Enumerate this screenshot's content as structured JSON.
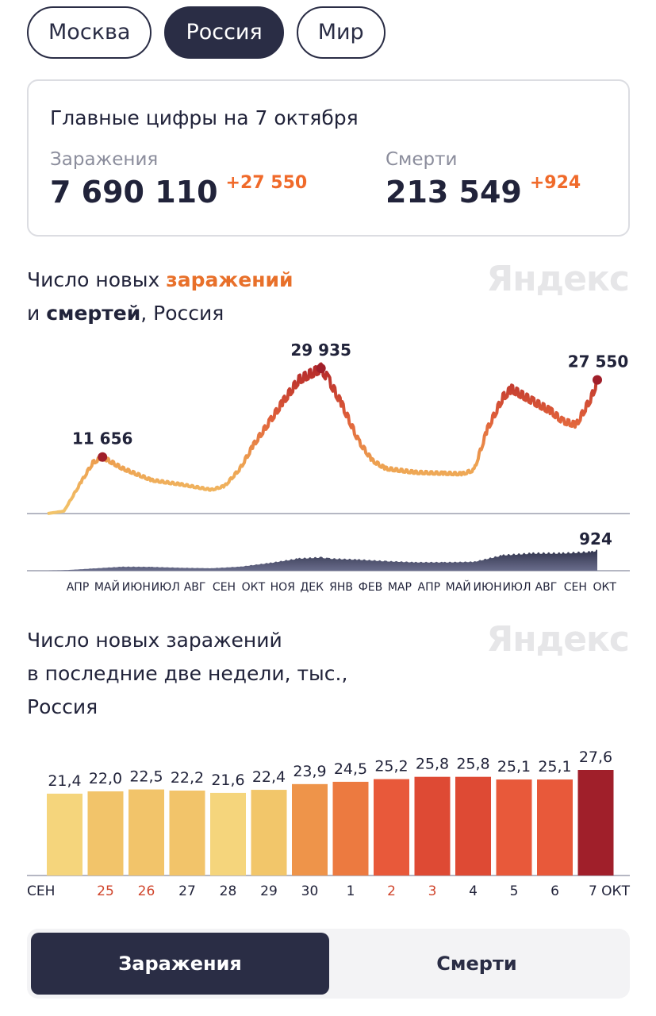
{
  "tabs": [
    "Москва",
    "Россия",
    "Мир"
  ],
  "active_tab": 1,
  "summary": {
    "title": "Главные цифры на 7 октября",
    "infections": {
      "label": "Заражения",
      "value": "7 690 110",
      "delta": "+27 550"
    },
    "deaths": {
      "label": "Смерти",
      "value": "213 549",
      "delta": "+924"
    }
  },
  "logo": "Яндекс",
  "chart1_title": {
    "p1": "Число новых ",
    "p2": "заражений",
    "p3": "и ",
    "p4": "смертей",
    "p5": ", Россия"
  },
  "chart2_title": [
    "Число новых заражений",
    "в последние две недели, тыс.,",
    "Россия"
  ],
  "toggle": {
    "infections": "Заражения",
    "deaths": "Смерти"
  },
  "colors": {
    "accent": "#e8702a",
    "dark": "#2a2d45",
    "peak": "#a01f2a"
  },
  "chart_data": [
    {
      "type": "line",
      "title": "Число новых заражений и смертей, Россия",
      "x_ticks": [
        "АПР",
        "МАЙ",
        "ИЮН",
        "ИЮЛ",
        "АВГ",
        "СЕН",
        "ОКТ",
        "НОЯ",
        "ДЕК",
        "ЯНВ",
        "ФЕВ",
        "МАР",
        "АПР",
        "МАЙ",
        "ИЮН",
        "ИЮЛ",
        "АВГ",
        "СЕН",
        "ОКТ"
      ],
      "series": [
        {
          "name": "заражений",
          "annotations": [
            {
              "date": "2020-05-11",
              "label": "11 656",
              "value": 11656
            },
            {
              "date": "2020-12-24",
              "label": "29 935",
              "value": 29935
            },
            {
              "date": "2021-10-07",
              "label": "27 550",
              "value": 27550
            }
          ],
          "points": [
            [
              "2020-03-15",
              0
            ],
            [
              "2020-04-01",
              500
            ],
            [
              "2020-04-20",
              6900
            ],
            [
              "2020-05-01",
              10500
            ],
            [
              "2020-05-11",
              11656
            ],
            [
              "2020-06-01",
              9300
            ],
            [
              "2020-07-01",
              6900
            ],
            [
              "2020-08-01",
              6000
            ],
            [
              "2020-09-01",
              4900
            ],
            [
              "2020-09-15",
              5700
            ],
            [
              "2020-10-01",
              9300
            ],
            [
              "2020-10-15",
              14200
            ],
            [
              "2020-11-01",
              19100
            ],
            [
              "2020-11-15",
              23200
            ],
            [
              "2020-12-01",
              27600
            ],
            [
              "2020-12-24",
              29935
            ],
            [
              "2021-01-01",
              27600
            ],
            [
              "2021-01-15",
              22400
            ],
            [
              "2021-02-01",
              15000
            ],
            [
              "2021-02-15",
              11000
            ],
            [
              "2021-03-01",
              9300
            ],
            [
              "2021-04-01",
              8500
            ],
            [
              "2021-05-01",
              8300
            ],
            [
              "2021-05-20",
              8200
            ],
            [
              "2021-06-01",
              9000
            ],
            [
              "2021-06-15",
              17500
            ],
            [
              "2021-07-01",
              24000
            ],
            [
              "2021-07-10",
              25700
            ],
            [
              "2021-08-01",
              23200
            ],
            [
              "2021-08-20",
              21100
            ],
            [
              "2021-09-01",
              19100
            ],
            [
              "2021-09-15",
              18300
            ],
            [
              "2021-10-01",
              24000
            ],
            [
              "2021-10-07",
              27550
            ]
          ]
        },
        {
          "name": "смертей",
          "annotations": [
            {
              "date": "2021-10-07",
              "label": "924",
              "value": 924
            }
          ],
          "points": [
            [
              "2020-03-15",
              0
            ],
            [
              "2020-04-01",
              20
            ],
            [
              "2020-05-01",
              100
            ],
            [
              "2020-06-01",
              180
            ],
            [
              "2020-07-01",
              170
            ],
            [
              "2020-08-01",
              130
            ],
            [
              "2020-09-01",
              110
            ],
            [
              "2020-10-01",
              180
            ],
            [
              "2020-11-01",
              350
            ],
            [
              "2020-12-01",
              550
            ],
            [
              "2020-12-24",
              600
            ],
            [
              "2021-01-01",
              550
            ],
            [
              "2021-02-01",
              500
            ],
            [
              "2021-03-01",
              430
            ],
            [
              "2021-04-01",
              380
            ],
            [
              "2021-05-01",
              380
            ],
            [
              "2021-06-01",
              400
            ],
            [
              "2021-07-01",
              700
            ],
            [
              "2021-08-01",
              790
            ],
            [
              "2021-09-01",
              790
            ],
            [
              "2021-10-01",
              850
            ],
            [
              "2021-10-07",
              924
            ]
          ]
        }
      ]
    },
    {
      "type": "bar",
      "title": "Число новых заражений в последние две недели, тыс., Россия",
      "categories": [
        "СЕН",
        "25",
        "26",
        "27",
        "28",
        "29",
        "30",
        "1",
        "2",
        "3",
        "4",
        "5",
        "6",
        "7 ОКТ"
      ],
      "weekend": [
        false,
        true,
        true,
        false,
        false,
        false,
        false,
        false,
        true,
        true,
        false,
        false,
        false,
        false
      ],
      "value_labels": [
        "21,4",
        "22,0",
        "22,5",
        "22,2",
        "21,6",
        "22,4",
        "23,9",
        "24,5",
        "25,2",
        "25,8",
        "25,8",
        "25,1",
        "25,1",
        "27,6"
      ],
      "values": [
        21.4,
        22.0,
        22.5,
        22.2,
        21.6,
        22.4,
        23.9,
        24.5,
        25.2,
        25.8,
        25.8,
        25.1,
        25.1,
        27.6
      ],
      "colors": [
        "#f5d57c",
        "#f2c46a",
        "#f2c46a",
        "#f2c46a",
        "#f5d57c",
        "#f2c66a",
        "#ee944a",
        "#ec7a40",
        "#e8593a",
        "#de4a34",
        "#de4a34",
        "#e8593a",
        "#e8593a",
        "#a01f2a"
      ],
      "ylim": [
        0,
        27.6
      ]
    }
  ]
}
